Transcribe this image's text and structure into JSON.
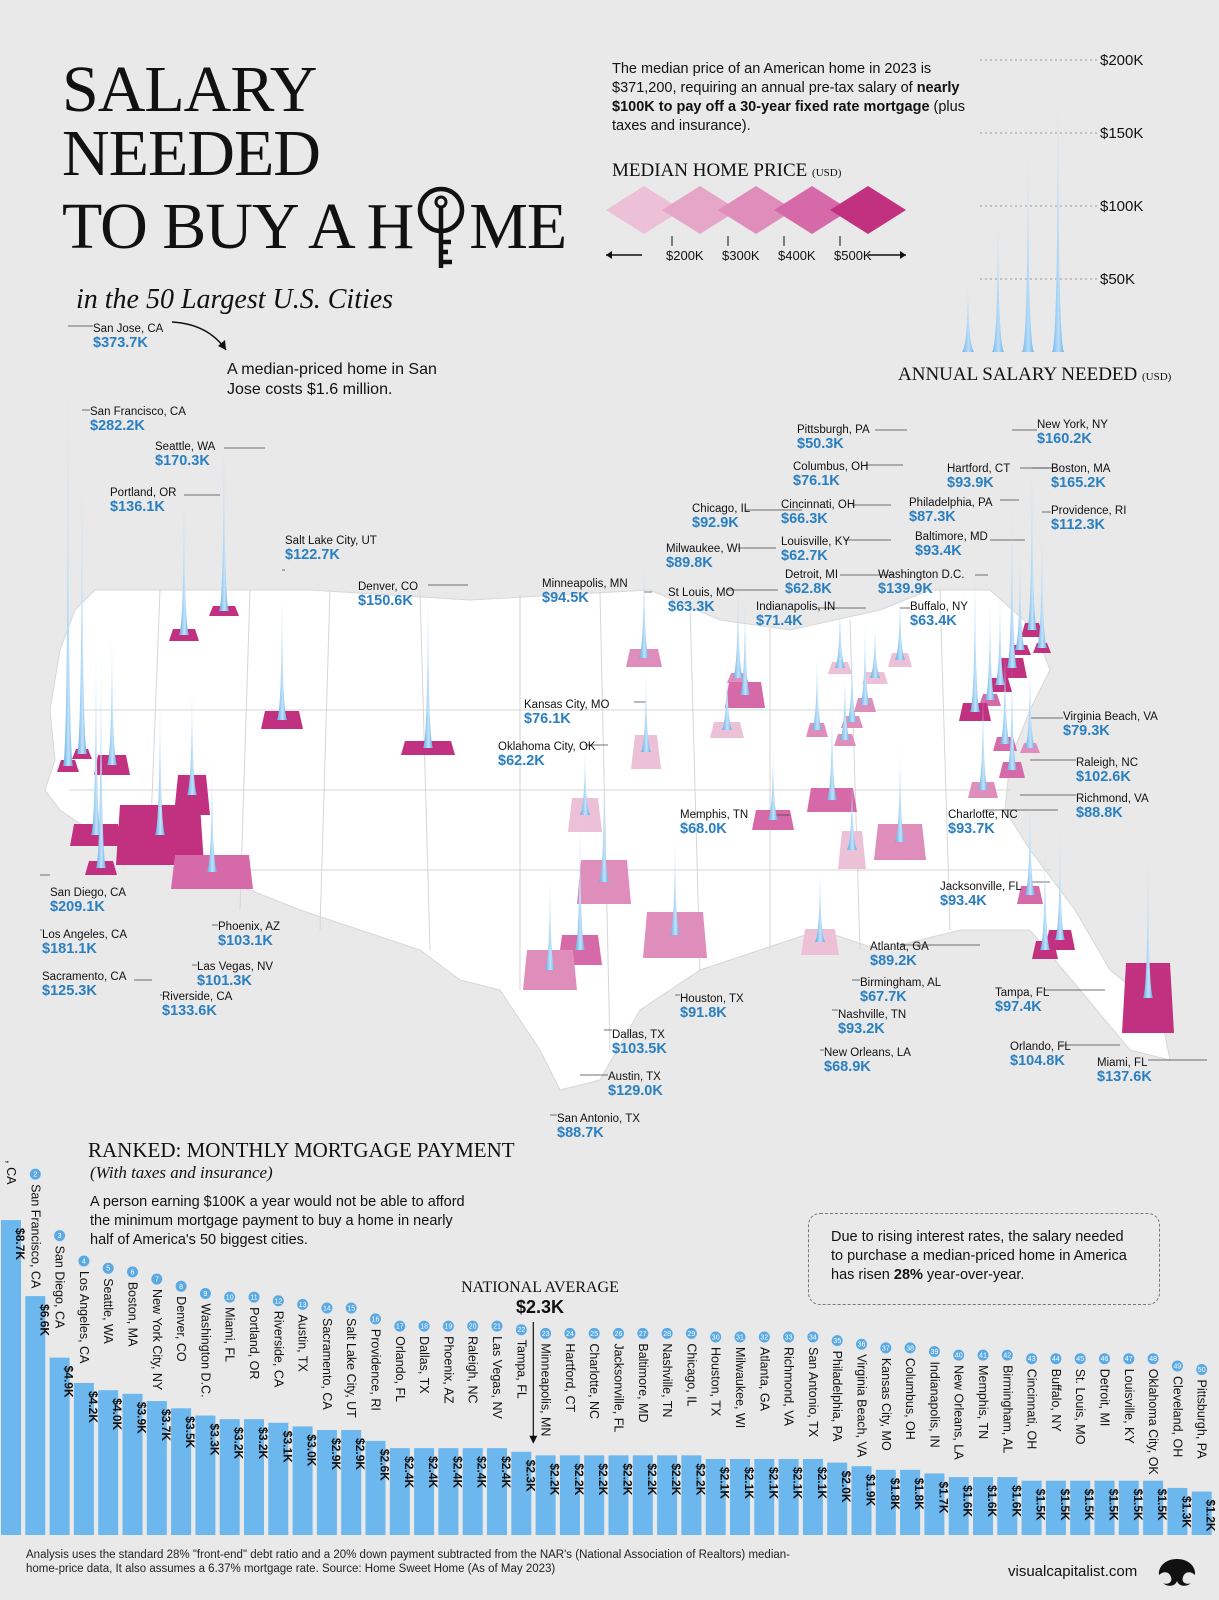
{
  "title": {
    "line1": "SALARY NEEDED",
    "line2": "TO BUY A H",
    "line2_end": "ME",
    "subtitle": "in the 50 Largest U.S. Cities"
  },
  "intro": {
    "part1": "The median price of an American home in 2023 is $371,200, requiring an annual pre-tax salary of ",
    "bold": "nearly $100K to pay off a 30-year fixed rate mortgage",
    "part2": " (plus taxes and insurance)."
  },
  "legend": {
    "title": "MEDIAN HOME PRICE",
    "unit": "(USD)",
    "ticks": [
      "$200K",
      "$300K",
      "$400K",
      "$500K"
    ],
    "colors": [
      "#ecc1d7",
      "#e5a6c8",
      "#df8dba",
      "#d66aa8",
      "#c2317f"
    ]
  },
  "scale": {
    "label": "ANNUAL  SALARY NEEDED",
    "unit": "(USD)",
    "ticks": [
      "$50K",
      "$100K",
      "$150K",
      "$200K"
    ],
    "tick_values": [
      50,
      100,
      150,
      200
    ],
    "spike_values": [
      50,
      100,
      150,
      200
    ]
  },
  "callout": "A median-priced home in San Jose costs $1.6 million.",
  "rank": {
    "title": "RANKED: MONTHLY MORTGAGE PAYMENT",
    "subtitle": "(With taxes and insurance)",
    "desc": "A person earning $100K a year would not be able to afford the minimum mortgage payment to buy a home in nearly half of America's 50 biggest cities."
  },
  "note": {
    "part1": "Due to rising interest rates, the salary needed to purchase a median-priced home in America has risen ",
    "bold": "28%",
    "part2": " year-over-year."
  },
  "national_average": {
    "label": "NATIONAL AVERAGE",
    "value": "$2.3K",
    "amount": 2.3
  },
  "footer": "Analysis uses the standard 28% \"front-end\" debt ratio and a 20% down payment subtracted from the NAR's (National Association of Realtors) median-home-price data, It also assumes a 6.37% mortgage rate. Source: Home Sweet Home (As of May 2023)",
  "brand": "visualcapitalist.com",
  "chart_data": [
    {
      "type": "scatter",
      "title": "ANNUAL  SALARY NEEDED",
      "unit": "thousand USD",
      "points": [
        {
          "city": "San Jose, CA",
          "salary": "$373.7K",
          "value": 373.7
        },
        {
          "city": "San Francisco, CA",
          "salary": "$282.2K",
          "value": 282.2
        },
        {
          "city": "Seattle, WA",
          "salary": "$170.3K",
          "value": 170.3
        },
        {
          "city": "Portland, OR",
          "salary": "$136.1K",
          "value": 136.1
        },
        {
          "city": "Salt Lake City, UT",
          "salary": "$122.7K",
          "value": 122.7
        },
        {
          "city": "Denver, CO",
          "salary": "$150.6K",
          "value": 150.6
        },
        {
          "city": "Minneapolis, MN",
          "salary": "$94.5K",
          "value": 94.5
        },
        {
          "city": "Chicago, IL",
          "salary": "$92.9K",
          "value": 92.9
        },
        {
          "city": "Milwaukee, WI",
          "salary": "$89.8K",
          "value": 89.8
        },
        {
          "city": "St Louis, MO",
          "salary": "$63.3K",
          "value": 63.3
        },
        {
          "city": "Kansas City, MO",
          "salary": "$76.1K",
          "value": 76.1
        },
        {
          "city": "Oklahoma City, OK",
          "salary": "$62.2K",
          "value": 62.2
        },
        {
          "city": "Pittsburgh, PA",
          "salary": "$50.3K",
          "value": 50.3
        },
        {
          "city": "Columbus, OH",
          "salary": "$76.1K",
          "value": 76.1
        },
        {
          "city": "Cincinnati, OH",
          "salary": "$66.3K",
          "value": 66.3
        },
        {
          "city": "Louisville, KY",
          "salary": "$62.7K",
          "value": 62.7
        },
        {
          "city": "Detroit, MI",
          "salary": "$62.8K",
          "value": 62.8
        },
        {
          "city": "Indianapolis, IN",
          "salary": "$71.4K",
          "value": 71.4
        },
        {
          "city": "Hartford, CT",
          "salary": "$93.9K",
          "value": 93.9
        },
        {
          "city": "Philadelphia, PA",
          "salary": "$87.3K",
          "value": 87.3
        },
        {
          "city": "Baltimore, MD",
          "salary": "$93.4K",
          "value": 93.4
        },
        {
          "city": "Washington D.C.",
          "salary": "$139.9K",
          "value": 139.9
        },
        {
          "city": "Buffalo, NY",
          "salary": "$63.4K",
          "value": 63.4
        },
        {
          "city": "New York, NY",
          "salary": "$160.2K",
          "value": 160.2
        },
        {
          "city": "Boston, MA",
          "salary": "$165.2K",
          "value": 165.2
        },
        {
          "city": "Providence, RI",
          "salary": "$112.3K",
          "value": 112.3
        },
        {
          "city": "Virginia Beach, VA",
          "salary": "$79.3K",
          "value": 79.3
        },
        {
          "city": "Raleigh, NC",
          "salary": "$102.6K",
          "value": 102.6
        },
        {
          "city": "Richmond, VA",
          "salary": "$88.8K",
          "value": 88.8
        },
        {
          "city": "Charlotte, NC",
          "salary": "$93.7K",
          "value": 93.7
        },
        {
          "city": "Memphis, TN",
          "salary": "$68.0K",
          "value": 68.0
        },
        {
          "city": "Jacksonville, FL",
          "salary": "$93.4K",
          "value": 93.4
        },
        {
          "city": "Atlanta, GA",
          "salary": "$89.2K",
          "value": 89.2
        },
        {
          "city": "Birmingham, AL",
          "salary": "$67.7K",
          "value": 67.7
        },
        {
          "city": "Nashville, TN",
          "salary": "$93.2K",
          "value": 93.2
        },
        {
          "city": "New Orleans, LA",
          "salary": "$68.9K",
          "value": 68.9
        },
        {
          "city": "Tampa, FL",
          "salary": "$97.4K",
          "value": 97.4
        },
        {
          "city": "Orlando, FL",
          "salary": "$104.8K",
          "value": 104.8
        },
        {
          "city": "Miami, FL",
          "salary": "$137.6K",
          "value": 137.6
        },
        {
          "city": "Houston, TX",
          "salary": "$91.8K",
          "value": 91.8
        },
        {
          "city": "Dallas, TX",
          "salary": "$103.5K",
          "value": 103.5
        },
        {
          "city": "Austin, TX",
          "salary": "$129.0K",
          "value": 129.0
        },
        {
          "city": "San Antonio, TX",
          "salary": "$88.7K",
          "value": 88.7
        },
        {
          "city": "San Diego, CA",
          "salary": "$209.1K",
          "value": 209.1
        },
        {
          "city": "Los Angeles, CA",
          "salary": "$181.1K",
          "value": 181.1
        },
        {
          "city": "Sacramento, CA",
          "salary": "$125.3K",
          "value": 125.3
        },
        {
          "city": "Phoenix, AZ",
          "salary": "$103.1K",
          "value": 103.1
        },
        {
          "city": "Las Vegas, NV",
          "salary": "$101.3K",
          "value": 101.3
        },
        {
          "city": "Riverside, CA",
          "salary": "$133.6K",
          "value": 133.6
        }
      ]
    },
    {
      "type": "bar",
      "title": "RANKED: MONTHLY MORTGAGE PAYMENT",
      "unit": "thousand USD",
      "bars": [
        {
          "rank": "1",
          "city": "San Jose, CA",
          "label": "$8.7K",
          "value": 8.7
        },
        {
          "rank": "2",
          "city": "San Francisco, CA",
          "label": "$6.6K",
          "value": 6.6
        },
        {
          "rank": "3",
          "city": "San Diego, CA",
          "label": "$4.9K",
          "value": 4.9
        },
        {
          "rank": "4",
          "city": "Los Angeles, CA",
          "label": "$4.2K",
          "value": 4.2
        },
        {
          "rank": "5",
          "city": "Seattle, WA",
          "label": "$4.0K",
          "value": 4.0
        },
        {
          "rank": "6",
          "city": "Boston, MA",
          "label": "$3.9K",
          "value": 3.9
        },
        {
          "rank": "7",
          "city": "New York City, NY",
          "label": "$3.7K",
          "value": 3.7
        },
        {
          "rank": "8",
          "city": "Denver, CO",
          "label": "$3.5K",
          "value": 3.5
        },
        {
          "rank": "9",
          "city": "Washington D.C.",
          "label": "$3.3K",
          "value": 3.3
        },
        {
          "rank": "10",
          "city": "Miami, FL",
          "label": "$3.2K",
          "value": 3.2
        },
        {
          "rank": "11",
          "city": "Portland, OR",
          "label": "$3.2K",
          "value": 3.2
        },
        {
          "rank": "12",
          "city": "Riverside, CA",
          "label": "$3.1K",
          "value": 3.1
        },
        {
          "rank": "13",
          "city": "Austin, TX",
          "label": "$3.0K",
          "value": 3.0
        },
        {
          "rank": "14",
          "city": "Sacramento, CA",
          "label": "$2.9K",
          "value": 2.9
        },
        {
          "rank": "15",
          "city": "Salt Lake City, UT",
          "label": "$2.9K",
          "value": 2.9
        },
        {
          "rank": "16",
          "city": "Providence, RI",
          "label": "$2.6K",
          "value": 2.6
        },
        {
          "rank": "17",
          "city": "Orlando, FL",
          "label": "$2.4K",
          "value": 2.4
        },
        {
          "rank": "18",
          "city": "Dallas, TX",
          "label": "$2.4K",
          "value": 2.4
        },
        {
          "rank": "19",
          "city": "Phoenix, AZ",
          "label": "$2.4K",
          "value": 2.4
        },
        {
          "rank": "20",
          "city": "Raleigh, NC",
          "label": "$2.4K",
          "value": 2.4
        },
        {
          "rank": "21",
          "city": "Las Vegas, NV",
          "label": "$2.4K",
          "value": 2.4
        },
        {
          "rank": "22",
          "city": "Tampa, FL",
          "label": "$2.3K",
          "value": 2.3
        },
        {
          "rank": "23",
          "city": "Minneapolis, MN",
          "label": "$2.2K",
          "value": 2.2
        },
        {
          "rank": "24",
          "city": "Hartford, CT",
          "label": "$2.2K",
          "value": 2.2
        },
        {
          "rank": "25",
          "city": "Charlotte, NC",
          "label": "$2.2K",
          "value": 2.2
        },
        {
          "rank": "26",
          "city": "Jacksonville, FL",
          "label": "$2.2K",
          "value": 2.2
        },
        {
          "rank": "27",
          "city": "Baltimore, MD",
          "label": "$2.2K",
          "value": 2.2
        },
        {
          "rank": "28",
          "city": "Nashville, TN",
          "label": "$2.2K",
          "value": 2.2
        },
        {
          "rank": "29",
          "city": "Chicago, IL",
          "label": "$2.2K",
          "value": 2.2
        },
        {
          "rank": "30",
          "city": "Houston, TX",
          "label": "$2.1K",
          "value": 2.1
        },
        {
          "rank": "31",
          "city": "Milwaukee, WI",
          "label": "$2.1K",
          "value": 2.1
        },
        {
          "rank": "32",
          "city": "Atlanta, GA",
          "label": "$2.1K",
          "value": 2.1
        },
        {
          "rank": "33",
          "city": "Richmond, VA",
          "label": "$2.1K",
          "value": 2.1
        },
        {
          "rank": "34",
          "city": "San Antonio, TX",
          "label": "$2.1K",
          "value": 2.1
        },
        {
          "rank": "35",
          "city": "Philadelphia, PA",
          "label": "$2.0K",
          "value": 2.0
        },
        {
          "rank": "36",
          "city": "Virginia Beach, VA",
          "label": "$1.9K",
          "value": 1.9
        },
        {
          "rank": "37",
          "city": "Kansas City, MO",
          "label": "$1.8K",
          "value": 1.8
        },
        {
          "rank": "38",
          "city": "Columbus, OH",
          "label": "$1.8K",
          "value": 1.8
        },
        {
          "rank": "39",
          "city": "Indianapolis, IN",
          "label": "$1.7K",
          "value": 1.7
        },
        {
          "rank": "40",
          "city": "New Orleans, LA",
          "label": "$1.6K",
          "value": 1.6
        },
        {
          "rank": "41",
          "city": "Memphis, TN",
          "label": "$1.6K",
          "value": 1.6
        },
        {
          "rank": "42",
          "city": "Birmingham, AL",
          "label": "$1.6K",
          "value": 1.6
        },
        {
          "rank": "43",
          "city": "Cincinnati, OH",
          "label": "$1.5K",
          "value": 1.5
        },
        {
          "rank": "44",
          "city": "Buffalo, NY",
          "label": "$1.5K",
          "value": 1.5
        },
        {
          "rank": "45",
          "city": "St. Louis, MO",
          "label": "$1.5K",
          "value": 1.5
        },
        {
          "rank": "46",
          "city": "Detroit, MI",
          "label": "$1.5K",
          "value": 1.5
        },
        {
          "rank": "47",
          "city": "Louisville, KY",
          "label": "$1.5K",
          "value": 1.5
        },
        {
          "rank": "48",
          "city": "Oklahoma City, OK",
          "label": "$1.5K",
          "value": 1.5
        },
        {
          "rank": "49",
          "city": "Cleveland, OH",
          "label": "$1.3K",
          "value": 1.3
        },
        {
          "rank": "50",
          "city": "Pittsburgh, PA",
          "label": "$1.2K",
          "value": 1.2
        }
      ]
    }
  ]
}
